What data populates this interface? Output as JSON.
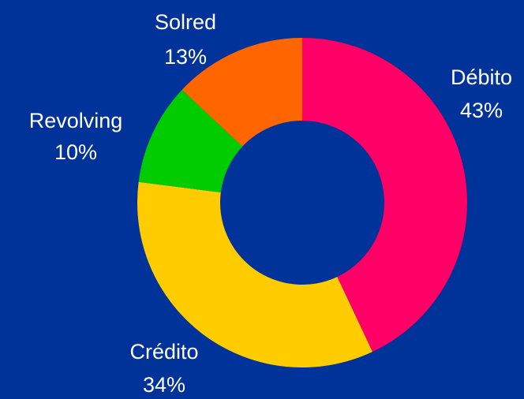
{
  "chart_data": {
    "type": "donut",
    "categories": [
      "Débito",
      "Crédito",
      "Revolving",
      "Solred"
    ],
    "values": [
      43,
      34,
      10,
      13
    ],
    "value_labels": [
      "43%",
      "34%",
      "10%",
      "13%"
    ],
    "colors": [
      "#ff0066",
      "#ffcc00",
      "#00cc00",
      "#ff6600"
    ]
  }
}
